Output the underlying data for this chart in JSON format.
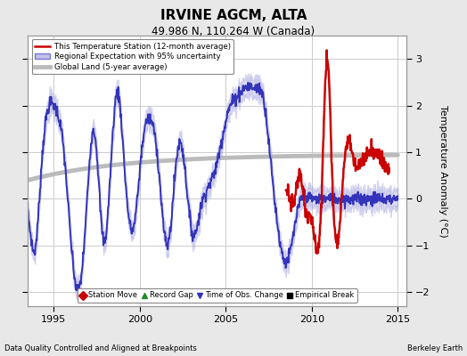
{
  "title": "IRVINE AGCM, ALTA",
  "subtitle": "49.986 N, 110.264 W (Canada)",
  "ylabel": "Temperature Anomaly (°C)",
  "xlabel_left": "Data Quality Controlled and Aligned at Breakpoints",
  "xlabel_right": "Berkeley Earth",
  "ylim": [
    -2.3,
    3.5
  ],
  "xlim_start": 1993.5,
  "xlim_end": 2015.5,
  "xticks": [
    1995,
    2000,
    2005,
    2010,
    2015
  ],
  "yticks": [
    -2,
    -1,
    0,
    1,
    2,
    3
  ],
  "bg_color": "#e8e8e8",
  "plot_bg_color": "#ffffff",
  "grid_color": "#cccccc",
  "legend_entries": [
    {
      "label": "This Temperature Station (12-month average)",
      "color": "#cc0000",
      "lw": 1.8
    },
    {
      "label": "Regional Expectation with 95% uncertainty",
      "color": "#3333bb",
      "lw": 1.4
    },
    {
      "label": "Global Land (5-year average)",
      "color": "#bbbbbb",
      "lw": 3.5
    }
  ],
  "bottom_legend": [
    {
      "label": "Station Move",
      "color": "#cc0000",
      "marker": "D"
    },
    {
      "label": "Record Gap",
      "color": "#228B22",
      "marker": "^"
    },
    {
      "label": "Time of Obs. Change",
      "color": "#3333bb",
      "marker": "v"
    },
    {
      "label": "Empirical Break",
      "color": "#000000",
      "marker": "s"
    }
  ]
}
